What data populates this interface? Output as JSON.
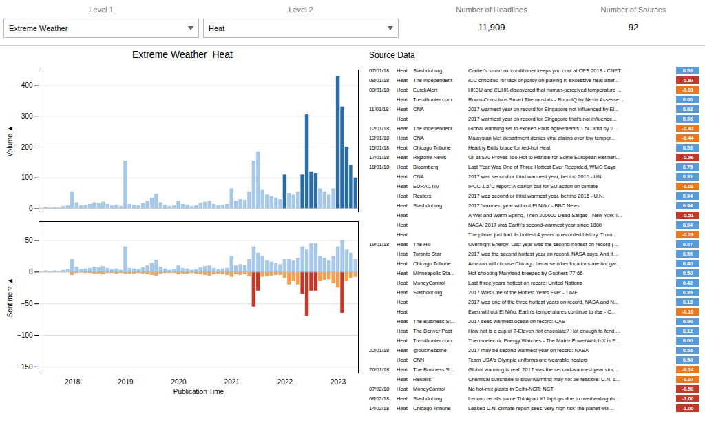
{
  "chart_data": [
    {
      "type": "bar",
      "title": "Extreme Weather  Heat",
      "annotations": [
        "Level 1",
        "Extreme Weather",
        "Level 2",
        "Heat",
        "Number of Headlines",
        "11,909",
        "Number of Sources",
        "92"
      ],
      "y_label": "Volume ▲",
      "categories": [
        null,
        null,
        null,
        null,
        null,
        null,
        null,
        "2018",
        null,
        null,
        null,
        null,
        null,
        null,
        null,
        null,
        null,
        null,
        null,
        "2019",
        null,
        null,
        null,
        null,
        null,
        null,
        null,
        null,
        null,
        null,
        null,
        "2020",
        null,
        null,
        null,
        null,
        null,
        null,
        null,
        null,
        null,
        null,
        null,
        "2021",
        null,
        null,
        null,
        null,
        null,
        null,
        null,
        null,
        null,
        null,
        null,
        "2022",
        null,
        null,
        null,
        null,
        null,
        null,
        null,
        null,
        null,
        null,
        null,
        "2023",
        null,
        null,
        null,
        null
      ],
      "values": [
        2,
        5,
        3,
        4,
        3,
        8,
        10,
        55,
        20,
        10,
        12,
        15,
        20,
        18,
        22,
        15,
        10,
        12,
        8,
        155,
        15,
        12,
        10,
        18,
        25,
        35,
        48,
        20,
        12,
        8,
        10,
        25,
        15,
        12,
        8,
        10,
        18,
        22,
        25,
        15,
        10,
        12,
        15,
        65,
        25,
        30,
        28,
        55,
        155,
        185,
        60,
        45,
        40,
        35,
        30,
        110,
        50,
        45,
        55,
        110,
        305,
        120,
        115,
        65,
        55,
        45,
        65,
        430,
        330,
        200,
        140,
        100
      ],
      "colors": [
        "#a8c8e8",
        "#a8c8e8",
        "#a8c8e8",
        "#a8c8e8",
        "#a8c8e8",
        "#a8c8e8",
        "#a8c8e8",
        "#a8c8e8",
        "#a8c8e8",
        "#a8c8e8",
        "#a8c8e8",
        "#a8c8e8",
        "#a8c8e8",
        "#a8c8e8",
        "#a8c8e8",
        "#a8c8e8",
        "#a8c8e8",
        "#a8c8e8",
        "#a8c8e8",
        "#a8c8e8",
        "#a8c8e8",
        "#a8c8e8",
        "#a8c8e8",
        "#a8c8e8",
        "#a8c8e8",
        "#a8c8e8",
        "#a8c8e8",
        "#a8c8e8",
        "#a8c8e8",
        "#a8c8e8",
        "#a8c8e8",
        "#a8c8e8",
        "#a8c8e8",
        "#a8c8e8",
        "#a8c8e8",
        "#a8c8e8",
        "#a8c8e8",
        "#a8c8e8",
        "#a8c8e8",
        "#a8c8e8",
        "#a8c8e8",
        "#a8c8e8",
        "#a8c8e8",
        "#a8c8e8",
        "#a8c8e8",
        "#a8c8e8",
        "#a8c8e8",
        "#a8c8e8",
        "#a8c8e8",
        "#a8c8e8",
        "#a8c8e8",
        "#a8c8e8",
        "#a8c8e8",
        "#a8c8e8",
        "#a8c8e8",
        "#2e6da4",
        "#a8c8e8",
        "#a8c8e8",
        "#a8c8e8",
        "#2e6da4",
        "#2e6da4",
        "#2e6da4",
        "#2e6da4",
        "#a8c8e8",
        "#a8c8e8",
        "#a8c8e8",
        "#a8c8e8",
        "#2e6da4",
        "#2e6da4",
        "#2e6da4",
        "#2e6da4",
        "#2e6da4"
      ],
      "ylim": [
        -10,
        450
      ],
      "yticks": [
        0,
        100,
        200,
        300,
        400
      ],
      "grid": true,
      "tick_labels": "y"
    },
    {
      "type": "bar",
      "x_label": "Publication Time",
      "y_label": "Sentiment ▲",
      "categories": [
        null,
        null,
        null,
        null,
        null,
        null,
        null,
        "2018",
        null,
        null,
        null,
        null,
        null,
        null,
        null,
        null,
        null,
        null,
        null,
        "2019",
        null,
        null,
        null,
        null,
        null,
        null,
        null,
        null,
        null,
        null,
        null,
        "2020",
        null,
        null,
        null,
        null,
        null,
        null,
        null,
        null,
        null,
        null,
        null,
        "2021",
        null,
        null,
        null,
        null,
        null,
        null,
        null,
        null,
        null,
        null,
        null,
        "2022",
        null,
        null,
        null,
        null,
        null,
        null,
        null,
        null,
        null,
        null,
        null,
        "2023",
        null,
        null,
        null,
        null
      ],
      "series": [
        {
          "color": "#a8c8e8",
          "values": [
            1,
            2,
            1,
            2,
            1,
            3,
            4,
            20,
            8,
            4,
            5,
            6,
            8,
            7,
            9,
            6,
            4,
            5,
            3,
            40,
            6,
            5,
            4,
            7,
            10,
            14,
            19,
            8,
            5,
            3,
            4,
            10,
            6,
            5,
            3,
            4,
            7,
            9,
            10,
            6,
            4,
            5,
            6,
            25,
            10,
            12,
            11,
            20,
            40,
            30,
            25,
            18,
            16,
            14,
            12,
            20,
            20,
            18,
            22,
            40,
            35,
            45,
            45,
            25,
            22,
            18,
            25,
            40,
            50,
            35,
            30,
            20
          ]
        },
        {
          "colors": [
            "#f0a050",
            "#f0a050",
            "#f0a050",
            "#f0a050",
            "#f0a050",
            "#f0a050",
            "#f0a050",
            "#f0a050",
            "#f0a050",
            "#f0a050",
            "#f0a050",
            "#f0a050",
            "#f0a050",
            "#f0a050",
            "#f0a050",
            "#f0a050",
            "#f0a050",
            "#f0a050",
            "#f0a050",
            "#f0a050",
            "#f0a050",
            "#f0a050",
            "#f0a050",
            "#f0a050",
            "#f0a050",
            "#f0a050",
            "#f0a050",
            "#f0a050",
            "#f0a050",
            "#f0a050",
            "#f0a050",
            "#f0a050",
            "#f0a050",
            "#f0a050",
            "#f0a050",
            "#f0a050",
            "#f0a050",
            "#f0a050",
            "#f0a050",
            "#f0a050",
            "#f0a050",
            "#f0a050",
            "#f0a050",
            "#f0a050",
            "#f0a050",
            "#f0a050",
            "#f0a050",
            "#f0a050",
            "#c0392b",
            "#c0392b",
            "#f0a050",
            "#f0a050",
            "#f0a050",
            "#f0a050",
            "#f0a050",
            "#f0a050",
            "#f0a050",
            "#f0a050",
            "#f0a050",
            "#c0392b",
            "#c0392b",
            "#c0392b",
            "#c0392b",
            "#f0a050",
            "#f0a050",
            "#f0a050",
            "#f0a050",
            "#f0a050",
            "#c0392b",
            "#f0a050",
            "#f0a050",
            "#f0a050"
          ],
          "values": [
            0,
            0,
            0,
            0,
            0,
            0,
            0,
            -5,
            -2,
            -1,
            -2,
            -2,
            -3,
            -3,
            -4,
            -2,
            -2,
            -3,
            -2,
            -3,
            -3,
            -3,
            -2,
            -3,
            -4,
            -5,
            -6,
            -3,
            -2,
            -2,
            -2,
            -4,
            -3,
            -3,
            -2,
            -3,
            -4,
            -5,
            -6,
            -4,
            -3,
            -4,
            -5,
            -8,
            -4,
            -5,
            -4,
            -7,
            -55,
            -30,
            -8,
            -7,
            -6,
            -5,
            -5,
            -10,
            -20,
            -15,
            -20,
            -35,
            -70,
            -30,
            -30,
            -15,
            -13,
            -12,
            -18,
            -25,
            -65,
            -15,
            -10,
            -8
          ]
        }
      ],
      "ylim": [
        -160,
        80
      ],
      "yticks": [
        -150,
        -100,
        -50,
        0,
        50
      ],
      "grid": true
    },
    {
      "type": "table",
      "title": "Source Data",
      "columns": {
        "date": [
          "07/01/18",
          "08/01/18",
          "09/01/18",
          null,
          "11/01/18",
          null,
          "12/01/18",
          "13/01/18",
          "15/01/18",
          "17/01/18",
          "18/01/18",
          null,
          null,
          null,
          null,
          null,
          null,
          null,
          "19/01/18",
          null,
          null,
          null,
          null,
          null,
          null,
          null,
          null,
          null,
          null,
          "22/01/18",
          null,
          "26/01/18",
          null,
          "07/02/18",
          "08/02/18",
          "14/02/18"
        ],
        "category": [
          "Heat",
          "Heat",
          "Heat",
          "Heat",
          "Heat",
          "Heat",
          "Heat",
          "Heat",
          "Heat",
          "Heat",
          "Heat",
          "Heat",
          "Heat",
          "Heat",
          "Heat",
          "Heat",
          "Heat",
          "Heat",
          "Heat",
          "Heat",
          "Heat",
          "Heat",
          "Heat",
          "Heat",
          "Heat",
          "Heat",
          "Heat",
          "Heat",
          "Heat",
          "Heat",
          "Heat",
          "Heat",
          "Heat",
          "Heat",
          "Heat",
          "Heat"
        ],
        "source": [
          "Slashdot.org",
          "The Independent",
          "EurekAlert",
          "Trendhunter.com",
          "CNA",
          null,
          "The Independent",
          "CNA",
          "Chicago Tribune",
          "Rigzone News",
          "Bloomberg",
          "CNA",
          "EURACTIV",
          "Reuters",
          "Slashdot.org",
          null,
          null,
          null,
          "The Hill",
          "Toronto Star",
          "Chicago Tribune",
          "Minneapolis Sta...",
          "MoneyControl",
          "Slashdot.org",
          null,
          null,
          "The Business St...",
          "The Denver Post",
          "Trendhunter.com",
          "@businessline",
          "CNN",
          "The Business St...",
          "Reuters",
          "MoneyControl",
          "Slashdot.org",
          "Chicago Tribune"
        ],
        "headline": [
          "Carrier's smart air conditioner keeps you cool at CES 2018 - CNET",
          "ICC criticised for lack of policy on playing in excessive heat after...",
          "HKBU and CUHK discovered that human-perceived temperature ...",
          "Room-Conscious Smart Thermostats - RoomIQ by Nexia Assesse...",
          "2017 warmest year on record for Singapore not influenced by El...",
          "2017 warmest year on record for Singapore that's not influence...",
          "Global warming set to exceed Paris agreement's 1.5C limit by 2...",
          "Malaysian Met department denies viral claims over low temper...",
          "Healthy Bulls brace for red-hot Heat",
          "Oil at $70 Proves Too Hot to Handle for Some European Refineri...",
          "Last Year Was One of Three Hottest Ever Recorded, WMO Says",
          "2017 was second or third warmest year, behind 2016 - UN",
          "IPCC 1.5°C report: A clarion call for EU action on climate",
          "2017 was second or third warmest year, behind 2016 - U.N.",
          "2017 'warmest year without El Niño' - BBC News",
          "A Wet and Warm Spring, Then 200000 Dead Saigas - New York T...",
          "NASA: 2017 was Earth's second-warmest year since 1880",
          "The planet just had its hottest 4 years in recorded history. Trum...",
          "Overnight Energy: Last year was the second-hottest on record | ...",
          "2017 was the second hottest year on record, NASA says. And it ...",
          "Amazon will choose Chicago because other locations are hot gar...",
          "Hot-shooting Maryland breezes by Gophers 77-66",
          "Last three years hottest on record: United Nations",
          "2017 Was One of the Hottest Years Ever - TIME",
          "2017 was one of the three hottest years on record, NASA and N...",
          "Even without El Niño, Earth's temperatures continue to rise - C...",
          "2017 sees warmest ocean on record: CAS",
          "How hot is a cup of 7-Eleven hot chocolate? Hot enough to fend ...",
          "Thermoelectric Energy Watches - The Matrix PowerWatch X is E...",
          "2017 may be second warmest year on record: NASA",
          "Team USA's Olympic uniforms are wearable heaters",
          "Global warming is real! 2017 was the second-warmest year sinc...",
          "Chemical sunshade to slow warming may not be feasible: U.N. d...",
          "No hot-mix plants in Delhi-NCR: NGT",
          "Lenovo recalls some Thinkpad X1 laptops due to overheating ris...",
          "Leaked U.N. climate report sees 'very high risk' the planet will ..."
        ]
      },
      "values": [
        0.53,
        -0.87,
        -0.01,
        0,
        0.92,
        0.96,
        -0.43,
        -0.44,
        0.53,
        -0.96,
        0.75,
        0.81,
        -0.02,
        0.94,
        0.94,
        -0.51,
        0.94,
        -0.29,
        0.97,
        0.56,
        0.4,
        0.5,
        0.42,
        0.89,
        0.18,
        -0.1,
        0.96,
        0.12,
        0,
        0.53,
        0.5,
        -0.14,
        -0.07,
        -0.5,
        -1,
        -1
      ],
      "value_labels": [
        "0.53",
        "-0.87",
        "-0.01",
        "0.00",
        "0.92",
        "0.96",
        "-0.43",
        "-0.44",
        "0.53",
        "-0.96",
        "0.75",
        "0.81",
        "-0.02",
        "0.94",
        "0.94",
        "-0.51",
        "0.94",
        "-0.29",
        "0.97",
        "0.56",
        "0.40",
        "0.50",
        "0.42",
        "0.89",
        "0.18",
        "-0.10",
        "0.96",
        "0.12",
        "0.00",
        "0.53",
        "0.50",
        "-0.14",
        "-0.07",
        "-0.50",
        "-1.00",
        "-1.00"
      ],
      "colors": [
        "#5b9bd5",
        "#c0392b",
        "#e87820",
        "#5b9bd5",
        "#5b9bd5",
        "#5b9bd5",
        "#e87820",
        "#e87820",
        "#5b9bd5",
        "#c0392b",
        "#5b9bd5",
        "#5b9bd5",
        "#e87820",
        "#5b9bd5",
        "#5b9bd5",
        "#c0392b",
        "#5b9bd5",
        "#e87820",
        "#5b9bd5",
        "#5b9bd5",
        "#5b9bd5",
        "#5b9bd5",
        "#5b9bd5",
        "#5b9bd5",
        "#5b9bd5",
        "#e87820",
        "#5b9bd5",
        "#5b9bd5",
        "#5b9bd5",
        "#5b9bd5",
        "#5b9bd5",
        "#e87820",
        "#e87820",
        "#c0392b",
        "#c0392b",
        "#c0392b"
      ]
    }
  ]
}
